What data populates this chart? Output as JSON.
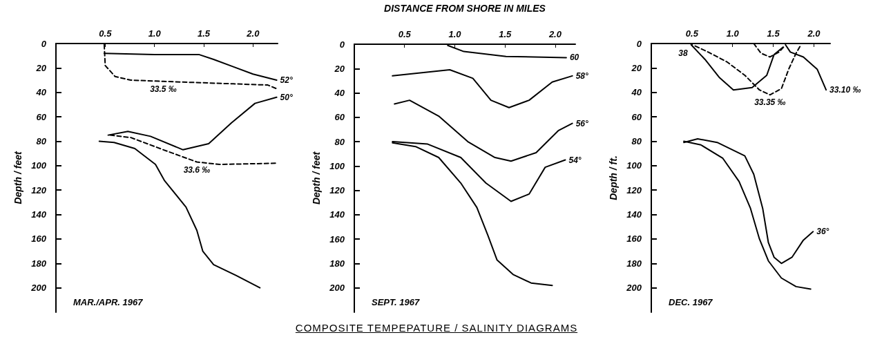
{
  "chart_data": [
    {
      "type": "line",
      "ylabel": "Depth / feet",
      "annotations": [
        "MAR./APR. 1967"
      ],
      "marker": "none",
      "xlim": [
        0,
        2.25
      ],
      "xticks": [
        {
          "value": 0.5,
          "label": "0.5"
        },
        {
          "value": 1,
          "label": "1.0"
        },
        {
          "value": 1.5,
          "label": "1.5"
        },
        {
          "value": 2,
          "label": "2.0"
        }
      ],
      "ylim": [
        220,
        0
      ],
      "yticks": [
        0,
        20,
        40,
        60,
        80,
        100,
        120,
        140,
        160,
        180,
        200
      ],
      "series": [
        {
          "name": "52°",
          "color": "#000000",
          "line_style": "solid",
          "x": [
            0.49,
            1.0,
            1.45,
            1.6,
            1.8,
            2.0,
            2.24
          ],
          "values": [
            8,
            9,
            9,
            13,
            19,
            25,
            30
          ]
        },
        {
          "name": "33.5 ‰",
          "color": "#000000",
          "line_style": "dashed",
          "x": [
            0.49,
            0.5,
            0.6,
            0.76,
            1.09,
            1.8,
            2.15,
            2.24
          ],
          "values": [
            1,
            18,
            27,
            30,
            31,
            33,
            34,
            37
          ]
        },
        {
          "name": "50°",
          "color": "#000000",
          "line_style": "solid",
          "x": [
            0.53,
            0.73,
            0.96,
            1.29,
            1.55,
            1.78,
            2.02,
            2.24
          ],
          "values": [
            75,
            72,
            76,
            87,
            82,
            65,
            49,
            44
          ]
        },
        {
          "name": "33.6 ‰",
          "color": "#000000",
          "line_style": "dashed",
          "x": [
            0.55,
            0.76,
            1.09,
            1.43,
            1.66,
            2.24
          ],
          "values": [
            75,
            77,
            87,
            97,
            99,
            98
          ]
        },
        {
          "color": "#000000",
          "line_style": "solid",
          "x": [
            0.44,
            0.59,
            0.8,
            1.01,
            1.1,
            1.32,
            1.43,
            1.49,
            1.6,
            1.83,
            2.07
          ],
          "values": [
            80,
            81,
            86,
            99,
            112,
            134,
            153,
            170,
            181,
            190,
            200
          ]
        }
      ]
    },
    {
      "type": "line",
      "xlabel": "DISTANCE FROM SHORE IN MILES",
      "title": "COMPOSITE TEMPEPATURE / SALINITY DIAGRAMS",
      "ylabel": "Depth / feet",
      "annotations": [
        "SEPT. 1967"
      ],
      "marker": "none",
      "xlim": [
        0,
        2.2
      ],
      "xticks": [
        {
          "value": 0.5,
          "label": "0.5"
        },
        {
          "value": 1,
          "label": "1.0"
        },
        {
          "value": 1.5,
          "label": "1.5"
        },
        {
          "value": 2,
          "label": "2.0"
        }
      ],
      "ylim": [
        220,
        0
      ],
      "yticks": [
        0,
        20,
        40,
        60,
        80,
        100,
        120,
        140,
        160,
        180,
        200
      ],
      "series": [
        {
          "name": "60",
          "color": "#000000",
          "line_style": "solid",
          "x": [
            0.93,
            1.09,
            1.51,
            2.11
          ],
          "values": [
            1,
            6,
            10,
            11
          ]
        },
        {
          "name": "58°",
          "color": "#000000",
          "line_style": "solid",
          "x": [
            0.38,
            0.95,
            1.18,
            1.36,
            1.54,
            1.74,
            1.97,
            2.17
          ],
          "values": [
            26,
            21,
            28,
            46,
            52,
            46,
            31,
            26
          ]
        },
        {
          "name": "56°",
          "color": "#000000",
          "line_style": "solid",
          "x": [
            0.4,
            0.55,
            0.84,
            1.13,
            1.4,
            1.56,
            1.81,
            2.03,
            2.17
          ],
          "values": [
            49,
            46,
            59,
            80,
            93,
            96,
            89,
            71,
            65
          ]
        },
        {
          "name": "54°",
          "color": "#000000",
          "line_style": "solid",
          "x": [
            0.38,
            0.73,
            1.06,
            1.31,
            1.56,
            1.74,
            1.9,
            2.1
          ],
          "values": [
            80,
            82,
            93,
            114,
            129,
            123,
            101,
            95
          ]
        },
        {
          "color": "#000000",
          "line_style": "solid",
          "x": [
            0.38,
            0.61,
            0.84,
            1.06,
            1.22,
            1.33,
            1.42,
            1.58,
            1.76,
            1.97
          ],
          "values": [
            81,
            84,
            93,
            114,
            134,
            157,
            177,
            189,
            196,
            198
          ]
        }
      ]
    },
    {
      "type": "line",
      "ylabel": "Depth / ft.",
      "annotations": [
        "DEC. 1967"
      ],
      "marker": "none",
      "xlim": [
        0,
        2.2
      ],
      "xticks": [
        {
          "value": 0.5,
          "label": "0.5"
        },
        {
          "value": 1,
          "label": "1.0"
        },
        {
          "value": 1.5,
          "label": "1.5"
        },
        {
          "value": 2,
          "label": "2.0"
        }
      ],
      "ylim": [
        220,
        0
      ],
      "yticks": [
        0,
        20,
        40,
        60,
        80,
        100,
        120,
        140,
        160,
        180,
        200
      ],
      "series": [
        {
          "name": "38",
          "color": "#000000",
          "line_style": "solid",
          "x": [
            1.62,
            1.51,
            1.42,
            1.24,
            1.01,
            0.84,
            0.66,
            0.49
          ],
          "values": [
            3,
            9,
            26,
            36,
            38,
            28,
            13,
            1
          ]
        },
        {
          "name": "33.35 ‰",
          "color": "#000000",
          "line_style": "dashed",
          "x": [
            0.54,
            0.7,
            0.93,
            1.15,
            1.33,
            1.46,
            1.6,
            1.69,
            1.78,
            1.84
          ],
          "values": [
            2,
            7,
            15,
            26,
            38,
            42,
            37,
            21,
            8,
            1
          ]
        },
        {
          "color": "#000000",
          "line_style": "dashed",
          "x": [
            1.26,
            1.35,
            1.46,
            1.57,
            1.64
          ],
          "values": [
            0,
            8,
            11,
            7,
            2
          ]
        },
        {
          "name": "33.10 ‰",
          "color": "#000000",
          "line_style": "solid",
          "x": [
            1.65,
            1.71,
            1.87,
            2.04,
            2.15
          ],
          "values": [
            1,
            7,
            11,
            21,
            38
          ]
        },
        {
          "name": "36°",
          "color": "#000000",
          "line_style": "solid",
          "x": [
            0.4,
            0.57,
            0.81,
            1.15,
            1.26,
            1.37,
            1.44,
            1.51,
            1.6,
            1.73,
            1.87,
            1.99
          ],
          "values": [
            81,
            78,
            81,
            92,
            107,
            135,
            163,
            175,
            180,
            175,
            161,
            154
          ]
        },
        {
          "color": "#000000",
          "line_style": "solid",
          "x": [
            0.4,
            0.61,
            0.88,
            1.08,
            1.22,
            1.33,
            1.44,
            1.6,
            1.78,
            1.96
          ],
          "values": [
            80,
            83,
            94,
            113,
            135,
            160,
            178,
            192,
            199,
            201
          ]
        }
      ]
    }
  ]
}
